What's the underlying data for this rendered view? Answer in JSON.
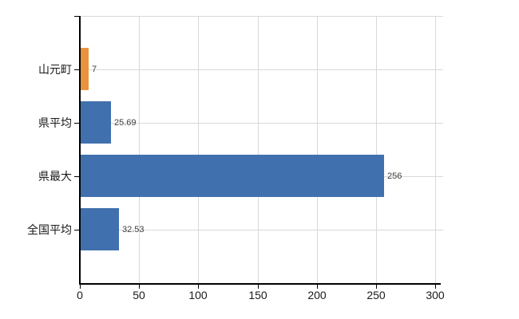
{
  "chart_data": {
    "type": "bar",
    "orientation": "horizontal",
    "title": "",
    "xlabel": "",
    "ylabel": "",
    "categories": [
      "山元町",
      "県平均",
      "県最大",
      "全国平均"
    ],
    "values": [
      7,
      25.69,
      256,
      32.53
    ],
    "value_labels": [
      "7",
      "25.69",
      "256",
      "32.53"
    ],
    "bar_colors": [
      "#e9943d",
      "#4070ae",
      "#4070ae",
      "#4070ae"
    ],
    "xlim": [
      0,
      300
    ],
    "x_ticks": [
      0,
      50,
      100,
      150,
      200,
      250,
      300
    ],
    "x_tick_labels": [
      "0",
      "50",
      "100",
      "150",
      "200",
      "250",
      "300"
    ],
    "grid": true,
    "legend": false,
    "colors": {
      "background": "#ffffff",
      "gridline": "#d9d9d9",
      "axis": "#000000",
      "category_label": "#1a1a1a",
      "tick_label": "#1a1a1a",
      "value_label": "#404040"
    }
  }
}
